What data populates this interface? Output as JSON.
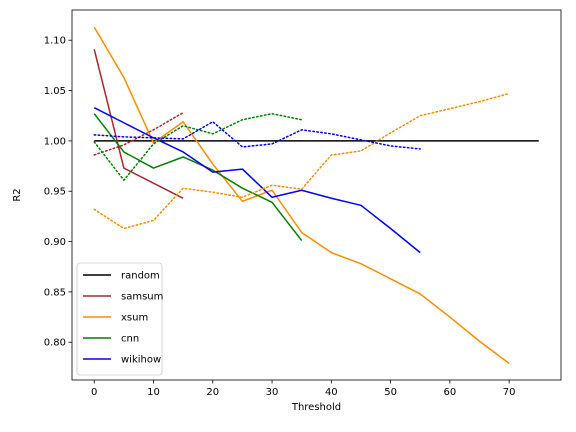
{
  "chart_data": {
    "type": "line",
    "title": "",
    "xlabel": "Threshold",
    "ylabel": "R2",
    "xlim": [
      -3.75,
      78.75
    ],
    "ylim": [
      0.7625,
      1.13
    ],
    "xticks": [
      0,
      10,
      20,
      30,
      40,
      50,
      60,
      70
    ],
    "yticks": [
      0.8,
      0.85,
      0.9,
      0.95,
      1.0,
      1.05,
      1.1
    ],
    "ytick_labels": [
      "0.80",
      "0.85",
      "0.90",
      "0.95",
      "1.00",
      "1.05",
      "1.10"
    ],
    "grid": false,
    "legend": "lower-left",
    "series": [
      {
        "name": "random",
        "color": "#000000",
        "style": "solid",
        "x": [
          0,
          75
        ],
        "y": [
          1.0,
          1.0
        ]
      },
      {
        "name": "samsum",
        "color": "#a52a2a",
        "style": "solid",
        "x": [
          0,
          5,
          10,
          15
        ],
        "y": [
          1.091,
          0.973,
          0.958,
          0.943
        ]
      },
      {
        "name": "xsum",
        "color": "#ff8c00",
        "style": "solid",
        "x": [
          0,
          5,
          10,
          15,
          20,
          25,
          30,
          35,
          40,
          45,
          50,
          55,
          60,
          65,
          70
        ],
        "y": [
          1.113,
          1.063,
          0.998,
          1.019,
          0.977,
          0.94,
          0.951,
          0.909,
          0.889,
          0.878,
          0.863,
          0.848,
          0.825,
          0.801,
          0.779
        ]
      },
      {
        "name": "cnn",
        "color": "#008000",
        "style": "solid",
        "x": [
          0,
          5,
          10,
          15,
          20,
          25,
          30,
          35
        ],
        "y": [
          1.027,
          0.989,
          0.973,
          0.984,
          0.971,
          0.953,
          0.939,
          0.901
        ]
      },
      {
        "name": "wikihow",
        "color": "#0000ff",
        "style": "solid",
        "x": [
          0,
          5,
          10,
          15,
          20,
          25,
          30,
          35,
          40,
          45,
          50,
          55
        ],
        "y": [
          1.033,
          1.018,
          1.003,
          0.989,
          0.969,
          0.972,
          0.944,
          0.951,
          0.943,
          0.936,
          0.913,
          0.889
        ]
      },
      {
        "name": "",
        "color": "#a52a2a",
        "style": "dotted",
        "x": [
          0,
          5,
          10,
          15
        ],
        "y": [
          0.986,
          0.996,
          1.011,
          1.028
        ]
      },
      {
        "name": "",
        "color": "#ff8c00",
        "style": "dotted",
        "x": [
          0,
          5,
          10,
          15,
          20,
          25,
          30,
          35,
          40,
          45,
          50,
          55,
          60,
          65,
          70
        ],
        "y": [
          0.932,
          0.913,
          0.921,
          0.953,
          0.949,
          0.944,
          0.956,
          0.952,
          0.986,
          0.99,
          1.008,
          1.025,
          1.032,
          1.039,
          1.047
        ]
      },
      {
        "name": "",
        "color": "#008000",
        "style": "dotted",
        "x": [
          0,
          5,
          10,
          15,
          20,
          25,
          30,
          35
        ],
        "y": [
          0.999,
          0.961,
          0.997,
          1.015,
          1.007,
          1.021,
          1.027,
          1.021
        ]
      },
      {
        "name": "",
        "color": "#0000ff",
        "style": "dotted",
        "x": [
          0,
          5,
          10,
          15,
          20,
          25,
          30,
          35,
          40,
          45,
          50,
          55
        ],
        "y": [
          1.006,
          1.004,
          1.003,
          1.002,
          1.019,
          0.994,
          0.997,
          1.011,
          1.007,
          1.001,
          0.995,
          0.992
        ]
      }
    ]
  }
}
